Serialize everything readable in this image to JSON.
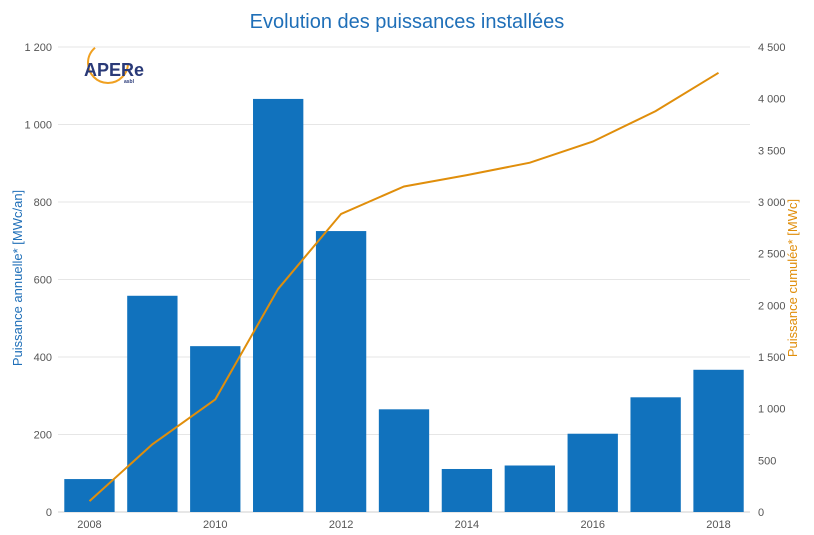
{
  "chart_data": {
    "type": "bar",
    "title": "Evolution des puissances installées",
    "categories": [
      2008,
      2009,
      2010,
      2011,
      2012,
      2013,
      2014,
      2015,
      2016,
      2017,
      2018
    ],
    "x_tick_labels": [
      "2008",
      "2010",
      "2012",
      "2014",
      "2016",
      "2018"
    ],
    "series": [
      {
        "name": "Puissance annuelle* [MWc/an]",
        "type": "bar",
        "axis": "left",
        "color": "#1172bd",
        "values": [
          85,
          558,
          428,
          1066,
          725,
          265,
          111,
          120,
          202,
          296,
          367
        ]
      },
      {
        "name": "Puissance cumulée* [MWc]",
        "type": "line",
        "axis": "right",
        "color": "#e08e0b",
        "values": [
          105,
          655,
          1090,
          2160,
          2885,
          3150,
          3260,
          3380,
          3585,
          3880,
          4250
        ]
      }
    ],
    "ylabel": "Puissance annuelle* [MWc/an]",
    "ylabel_right": "Puissance cumulée* [MWc]",
    "ylim": [
      0,
      1200
    ],
    "ylim_right": [
      0,
      4500
    ],
    "y_ticks": [
      "0",
      "200",
      "400",
      "600",
      "800",
      "1 000",
      "1 200"
    ],
    "y_ticks_right": [
      "0",
      "500",
      "1 000",
      "1 500",
      "2 000",
      "2 500",
      "3 000",
      "3 500",
      "4 000",
      "4 500"
    ],
    "grid": true,
    "legend": "none"
  },
  "logo": {
    "text": "APERe",
    "small_text": "asbl"
  }
}
